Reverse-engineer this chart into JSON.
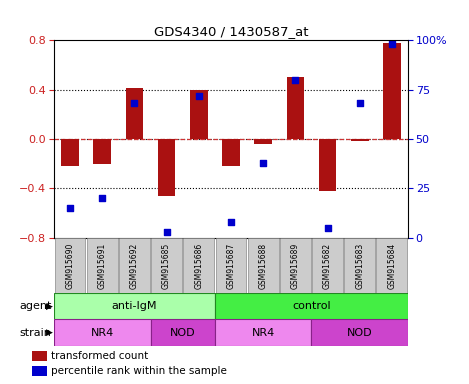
{
  "title": "GDS4340 / 1430587_at",
  "samples": [
    "GSM915690",
    "GSM915691",
    "GSM915692",
    "GSM915685",
    "GSM915686",
    "GSM915687",
    "GSM915688",
    "GSM915689",
    "GSM915682",
    "GSM915683",
    "GSM915684"
  ],
  "bar_values": [
    -0.22,
    -0.2,
    0.41,
    -0.46,
    0.4,
    -0.22,
    -0.04,
    0.5,
    -0.42,
    -0.02,
    0.78
  ],
  "dot_values": [
    15,
    20,
    68,
    3,
    72,
    8,
    38,
    80,
    5,
    68,
    98
  ],
  "bar_color": "#aa1111",
  "dot_color": "#0000cc",
  "ylim_left": [
    -0.8,
    0.8
  ],
  "yticks_left": [
    -0.8,
    -0.4,
    0.0,
    0.4,
    0.8
  ],
  "yticks_right": [
    0,
    25,
    50,
    75,
    100
  ],
  "ytick_labels_right": [
    "0",
    "25",
    "50",
    "75",
    "100%"
  ],
  "agent_groups": [
    {
      "label": "anti-IgM",
      "start": 0,
      "end": 5,
      "color": "#aaffaa"
    },
    {
      "label": "control",
      "start": 5,
      "end": 11,
      "color": "#44ee44"
    }
  ],
  "strain_groups": [
    {
      "label": "NR4",
      "start": 0,
      "end": 3,
      "color": "#ee88ee"
    },
    {
      "label": "NOD",
      "start": 3,
      "end": 5,
      "color": "#cc44cc"
    },
    {
      "label": "NR4",
      "start": 5,
      "end": 8,
      "color": "#ee88ee"
    },
    {
      "label": "NOD",
      "start": 8,
      "end": 11,
      "color": "#cc44cc"
    }
  ],
  "legend_bar_label": "transformed count",
  "legend_dot_label": "percentile rank within the sample",
  "agent_label": "agent",
  "strain_label": "strain",
  "background_color": "#ffffff",
  "label_bg_color": "#cccccc",
  "dotted_line_color": "#000000",
  "zero_line_color": "#cc3333"
}
